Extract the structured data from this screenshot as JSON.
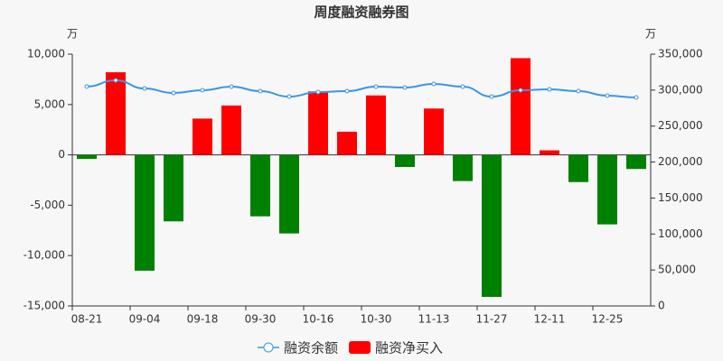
{
  "chart_data": {
    "type": "bar-line",
    "title": "周度融资融券图",
    "y_unit": "万",
    "y2_unit": "万",
    "categories": [
      "08-21",
      null,
      "09-04",
      null,
      "09-18",
      null,
      "09-30",
      null,
      "10-16",
      null,
      "10-30",
      null,
      "11-13",
      null,
      "11-27",
      null,
      "12-11",
      null,
      "12-25",
      null
    ],
    "series": [
      {
        "name": "融资余额",
        "type": "line",
        "axis": "y2",
        "color": "#3a95e8",
        "values": [
          305000,
          313600,
          302300,
          296000,
          299800,
          304800,
          298600,
          291000,
          297300,
          298600,
          304800,
          303600,
          308600,
          304800,
          291000,
          299800,
          301000,
          298600,
          292300,
          289800
        ]
      },
      {
        "name": "融资净买入",
        "type": "bar",
        "color": "#ff0000",
        "negative_color": "#008000",
        "values": [
          -400,
          8200,
          -11500,
          -6600,
          3600,
          4900,
          -6100,
          -7800,
          6300,
          2300,
          5900,
          -1200,
          4600,
          -2600,
          -14100,
          9600,
          450,
          -2700,
          -6900,
          -1400
        ]
      }
    ],
    "ylim": [
      -15000,
      10000
    ],
    "yticks": [
      {
        "value": -15000,
        "label": "-15,000"
      },
      {
        "value": -10000,
        "label": "-10,000"
      },
      {
        "value": -5000,
        "label": "-5,000"
      },
      0,
      {
        "value": 5000,
        "label": "5,000"
      },
      {
        "value": 10000,
        "label": "10,000"
      }
    ],
    "y2lim": [
      0,
      350000
    ],
    "y2ticks": [
      0,
      {
        "value": 50000,
        "label": "50,000"
      },
      {
        "value": 100000,
        "label": "100,000"
      },
      {
        "value": 150000,
        "label": "150,000"
      },
      {
        "value": 200000,
        "label": "200,000"
      },
      {
        "value": 250000,
        "label": "250,000"
      },
      {
        "value": 300000,
        "label": "300,000"
      },
      {
        "value": 350000,
        "label": "350,000"
      }
    ]
  }
}
